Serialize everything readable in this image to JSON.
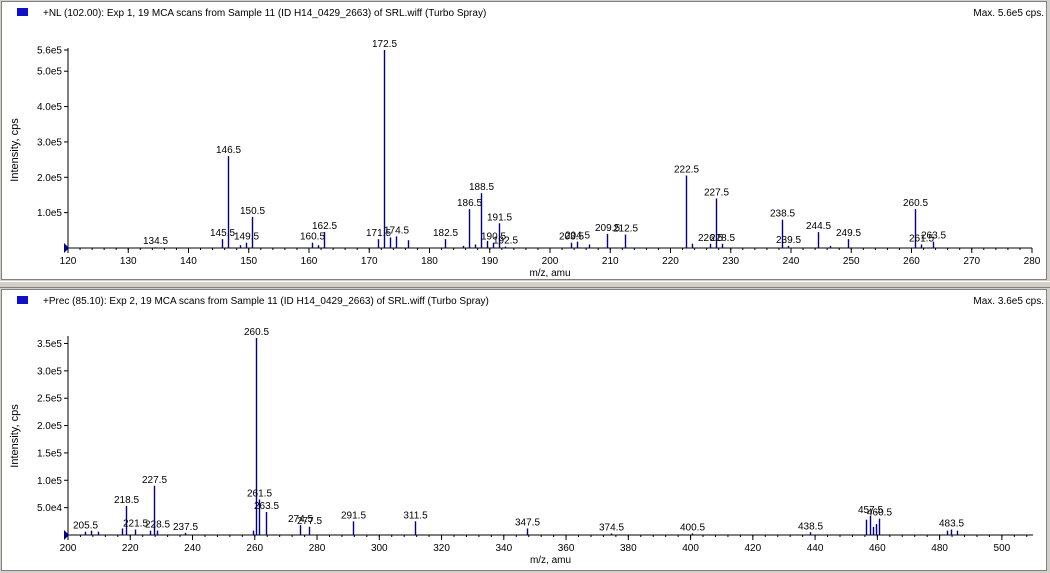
{
  "colors": {
    "spectrum": "#00008b",
    "axis": "#000000",
    "marker": "#1010c8"
  },
  "chart_data": [
    {
      "type": "bar",
      "title": "+NL (102.00): Exp 1, 19 MCA scans from Sample 11 (ID H14_0429_2663) of SRL.wiff (Turbo Spray)",
      "max_label": "Max. 5.6e5 cps.",
      "xlabel": "m/z, amu",
      "ylabel": "Intensity, cps",
      "xlim": [
        120,
        280
      ],
      "ylim": [
        0,
        560000
      ],
      "x_ticks": [
        120,
        130,
        140,
        150,
        160,
        170,
        180,
        190,
        200,
        210,
        220,
        230,
        240,
        250,
        260,
        270,
        280
      ],
      "x_tick_labels": [
        "120",
        "130",
        "140",
        "150",
        "160",
        "170",
        "180",
        "190",
        "200",
        "210",
        "220",
        "230",
        "240",
        "250",
        "260",
        "270",
        "280"
      ],
      "y_ticks": [
        100000,
        200000,
        300000,
        400000,
        500000,
        560000
      ],
      "y_tick_labels": [
        "1.0e5",
        "2.0e5",
        "3.0e5",
        "4.0e5",
        "5.0e5",
        "5.6e5"
      ],
      "peaks": [
        {
          "mz": 134.5,
          "intensity": 2000,
          "label": "134.5"
        },
        {
          "mz": 145.5,
          "intensity": 25000,
          "label": "145.5"
        },
        {
          "mz": 146.5,
          "intensity": 260000,
          "label": "146.5"
        },
        {
          "mz": 148.5,
          "intensity": 8000
        },
        {
          "mz": 149.5,
          "intensity": 15000,
          "label": "149.5"
        },
        {
          "mz": 150.5,
          "intensity": 88000,
          "label": "150.5"
        },
        {
          "mz": 160.5,
          "intensity": 15000,
          "label": "160.5"
        },
        {
          "mz": 161.5,
          "intensity": 8000
        },
        {
          "mz": 162.5,
          "intensity": 45000,
          "label": "162.5"
        },
        {
          "mz": 171.5,
          "intensity": 25000,
          "label": "171.5"
        },
        {
          "mz": 172.5,
          "intensity": 560000,
          "label": "172.5"
        },
        {
          "mz": 173.5,
          "intensity": 30000
        },
        {
          "mz": 174.5,
          "intensity": 33000,
          "label": "174.5"
        },
        {
          "mz": 176.5,
          "intensity": 22000
        },
        {
          "mz": 182.5,
          "intensity": 25000,
          "label": "182.5"
        },
        {
          "mz": 185.5,
          "intensity": 6000
        },
        {
          "mz": 186.5,
          "intensity": 110000,
          "label": "186.5"
        },
        {
          "mz": 187.5,
          "intensity": 10000
        },
        {
          "mz": 188.5,
          "intensity": 155000,
          "label": "188.5"
        },
        {
          "mz": 189.5,
          "intensity": 20000
        },
        {
          "mz": 190.5,
          "intensity": 15000,
          "label": "190.5"
        },
        {
          "mz": 191.5,
          "intensity": 70000,
          "label": "191.5"
        },
        {
          "mz": 192.5,
          "intensity": 4000,
          "label": "192.5"
        },
        {
          "mz": 203.5,
          "intensity": 15000,
          "label": "203.5"
        },
        {
          "mz": 204.5,
          "intensity": 18000,
          "label": "204.5"
        },
        {
          "mz": 206.5,
          "intensity": 10000
        },
        {
          "mz": 209.5,
          "intensity": 40000,
          "label": "209.5"
        },
        {
          "mz": 212.5,
          "intensity": 38000,
          "label": "212.5"
        },
        {
          "mz": 222.5,
          "intensity": 205000,
          "label": "222.5"
        },
        {
          "mz": 223.5,
          "intensity": 12000
        },
        {
          "mz": 226.5,
          "intensity": 12000,
          "label": "226.5"
        },
        {
          "mz": 227.5,
          "intensity": 140000,
          "label": "227.5"
        },
        {
          "mz": 228.5,
          "intensity": 12000,
          "label": "228.5"
        },
        {
          "mz": 238.5,
          "intensity": 80000,
          "label": "238.5"
        },
        {
          "mz": 239.5,
          "intensity": 6000,
          "label": "239.5"
        },
        {
          "mz": 244.5,
          "intensity": 45000,
          "label": "244.5"
        },
        {
          "mz": 246.5,
          "intensity": 6000
        },
        {
          "mz": 249.5,
          "intensity": 25000,
          "label": "249.5"
        },
        {
          "mz": 260.5,
          "intensity": 110000,
          "label": "260.5"
        },
        {
          "mz": 261.5,
          "intensity": 10000,
          "label": "261.5"
        },
        {
          "mz": 263.5,
          "intensity": 18000,
          "label": "263.5"
        }
      ]
    },
    {
      "type": "bar",
      "title": "+Prec (85.10): Exp 2, 19 MCA scans from Sample 11 (ID H14_0429_2663) of SRL.wiff (Turbo Spray)",
      "max_label": "Max. 3.6e5 cps.",
      "xlabel": "m/z, amu",
      "ylabel": "Intensity, cps",
      "xlim": [
        200,
        510
      ],
      "ylim": [
        0,
        360000
      ],
      "x_ticks": [
        200,
        220,
        240,
        260,
        280,
        300,
        320,
        340,
        360,
        380,
        400,
        420,
        440,
        460,
        480,
        500
      ],
      "x_tick_labels": [
        "200",
        "220",
        "240",
        "260",
        "280",
        "300",
        "320",
        "340",
        "360",
        "380",
        "400",
        "420",
        "440",
        "460",
        "480",
        "500"
      ],
      "y_ticks": [
        50000,
        100000,
        150000,
        200000,
        250000,
        300000,
        350000
      ],
      "y_tick_labels": [
        "5.0e4",
        "1.0e5",
        "1.5e5",
        "2.0e5",
        "2.5e5",
        "3.0e5",
        "3.5e5"
      ],
      "peaks": [
        {
          "mz": 205.5,
          "intensity": 6000,
          "label": "205.5"
        },
        {
          "mz": 207.5,
          "intensity": 8000
        },
        {
          "mz": 209.5,
          "intensity": 6000
        },
        {
          "mz": 217.5,
          "intensity": 12000
        },
        {
          "mz": 218.5,
          "intensity": 53000,
          "label": "218.5"
        },
        {
          "mz": 221.5,
          "intensity": 10000,
          "label": "221.5"
        },
        {
          "mz": 226.5,
          "intensity": 8000
        },
        {
          "mz": 227.5,
          "intensity": 90000,
          "label": "227.5"
        },
        {
          "mz": 228.5,
          "intensity": 8000,
          "label": "228.5"
        },
        {
          "mz": 237.5,
          "intensity": 4000,
          "label": "237.5"
        },
        {
          "mz": 259.5,
          "intensity": 8000
        },
        {
          "mz": 260.5,
          "intensity": 360000,
          "label": "260.5"
        },
        {
          "mz": 261.5,
          "intensity": 65000,
          "label": "261.5"
        },
        {
          "mz": 263.5,
          "intensity": 42000,
          "label": "263.5"
        },
        {
          "mz": 274.5,
          "intensity": 18000,
          "label": "274.5"
        },
        {
          "mz": 277.5,
          "intensity": 15000,
          "label": "277.5"
        },
        {
          "mz": 291.5,
          "intensity": 25000,
          "label": "291.5"
        },
        {
          "mz": 311.5,
          "intensity": 25000,
          "label": "311.5"
        },
        {
          "mz": 347.5,
          "intensity": 12000,
          "label": "347.5"
        },
        {
          "mz": 374.5,
          "intensity": 3000,
          "label": "374.5"
        },
        {
          "mz": 400.5,
          "intensity": 3000,
          "label": "400.5"
        },
        {
          "mz": 438.5,
          "intensity": 5000,
          "label": "438.5"
        },
        {
          "mz": 456.5,
          "intensity": 28000
        },
        {
          "mz": 457.5,
          "intensity": 35000,
          "label": "457.5"
        },
        {
          "mz": 458.5,
          "intensity": 15000
        },
        {
          "mz": 459.5,
          "intensity": 20000
        },
        {
          "mz": 460.5,
          "intensity": 30000,
          "label": "460.5"
        },
        {
          "mz": 482.5,
          "intensity": 8000
        },
        {
          "mz": 483.5,
          "intensity": 10000,
          "label": "483.5"
        },
        {
          "mz": 485.5,
          "intensity": 8000
        }
      ]
    }
  ]
}
